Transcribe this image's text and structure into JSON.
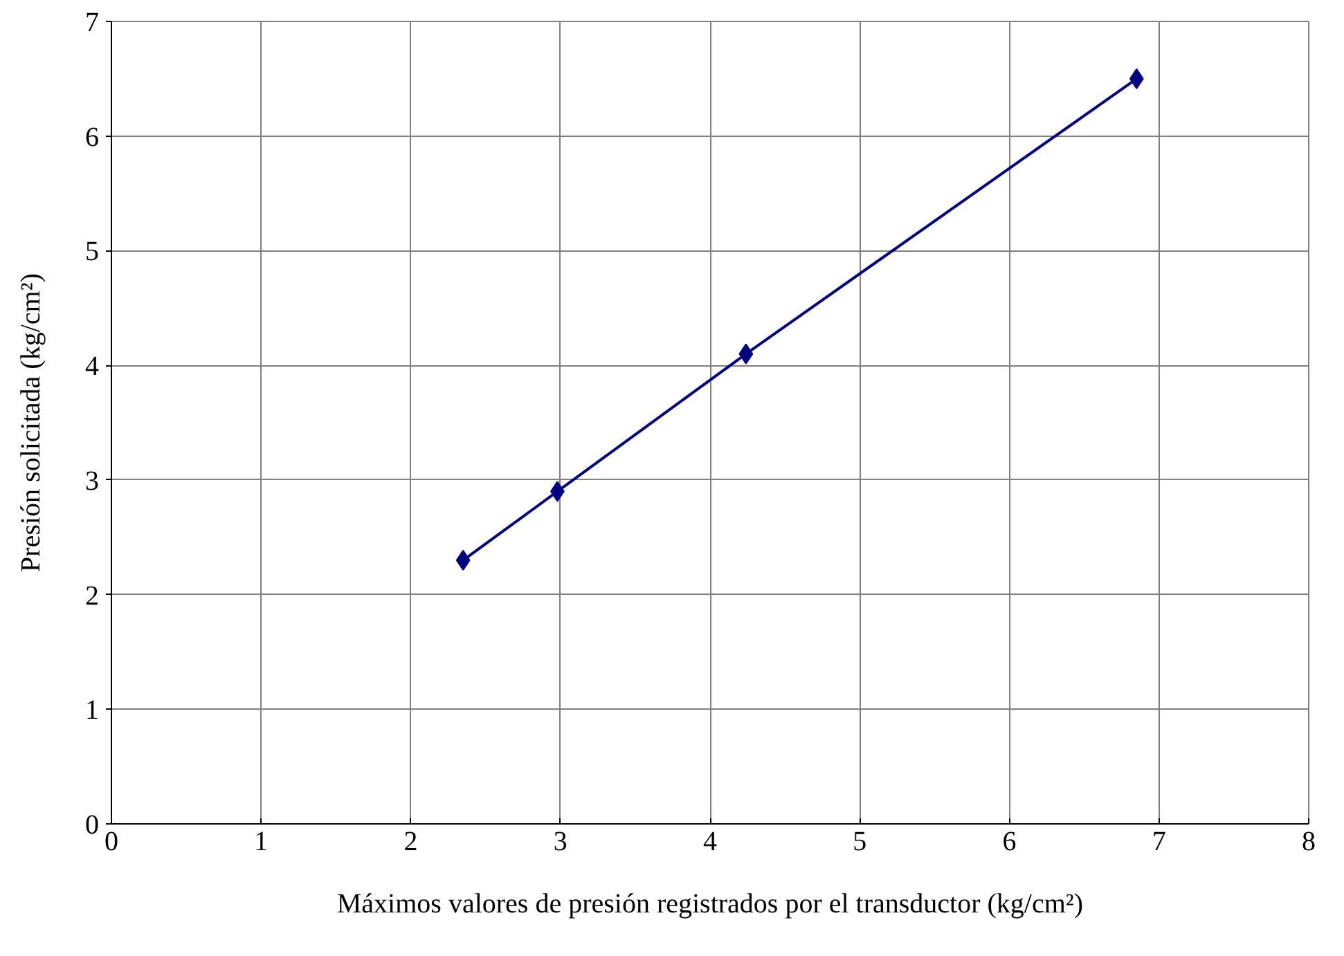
{
  "chart_data": {
    "type": "line",
    "xlabel": "Máximos valores de presión registrados por el transductor (kg/cm²)",
    "ylabel": "Presión solicitada (kg/cm²)",
    "x": [
      2.35,
      2.98,
      4.24,
      6.85
    ],
    "series": [
      {
        "color": "#000080",
        "values": [
          2.3,
          2.9,
          4.1,
          6.5
        ]
      }
    ],
    "xlim": [
      0,
      8
    ],
    "ylim": [
      0,
      7
    ],
    "xticks": [
      0,
      1,
      2,
      3,
      4,
      5,
      6,
      7,
      8
    ],
    "yticks": [
      0,
      1,
      2,
      3,
      4,
      5,
      6,
      7
    ],
    "grid": true,
    "marker": "diamond",
    "line_style": "solid"
  }
}
